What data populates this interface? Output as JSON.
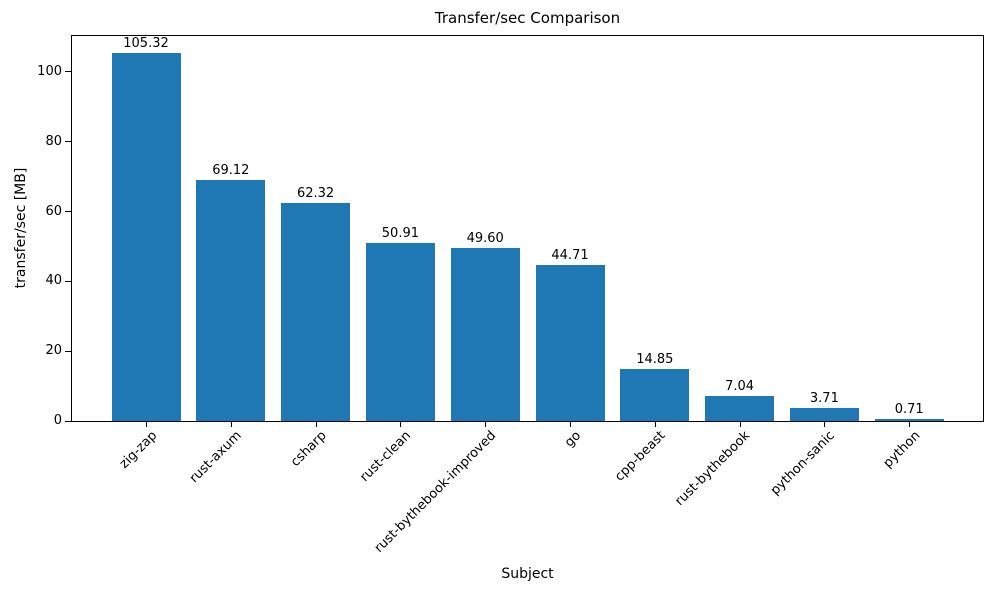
{
  "chart_data": {
    "type": "bar",
    "title": "Transfer/sec Comparison",
    "xlabel": "Subject",
    "ylabel": "transfer/sec [MB]",
    "categories": [
      "zig-zap",
      "rust-axum",
      "csharp",
      "rust-clean",
      "rust-bythebook-improved",
      "go",
      "cpp-beast",
      "rust-bythebook",
      "python-sanic",
      "python"
    ],
    "values": [
      105.32,
      69.12,
      62.32,
      50.91,
      49.6,
      44.71,
      14.85,
      7.04,
      3.71,
      0.71
    ],
    "value_labels": [
      "105.32",
      "69.12",
      "62.32",
      "50.91",
      "49.60",
      "44.71",
      "14.85",
      "7.04",
      "3.71",
      "0.71"
    ],
    "yticks": [
      0,
      20,
      40,
      60,
      80,
      100
    ],
    "ylim": [
      0,
      110.6
    ],
    "xtick_rotation": 45,
    "grid": false,
    "legend": null,
    "bar_color": "#1f77b4",
    "axis_color": "#000000",
    "text_color": "#000000",
    "background_color": "#ffffff"
  }
}
